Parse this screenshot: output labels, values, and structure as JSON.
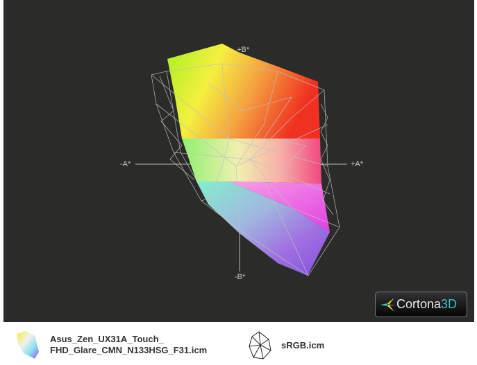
{
  "viewer": {
    "axes": {
      "plus_b": "+B*",
      "minus_b": "-B*",
      "minus_a": "-A*",
      "plus_a": "+A*"
    },
    "logo": {
      "brand": "Cortona",
      "brand_suffix": "3D"
    },
    "background_color": "#2b2b29",
    "wireframe_color": "#c0c0c0"
  },
  "legend": [
    {
      "label": "Asus_Zen_UX31A_Touch_\nFHD_Glare_CMN_N133HSG_F31.icm",
      "icon": "solid-gamut-icon"
    },
    {
      "label": "sRGB.icm",
      "icon": "wireframe-gamut-icon"
    }
  ]
}
